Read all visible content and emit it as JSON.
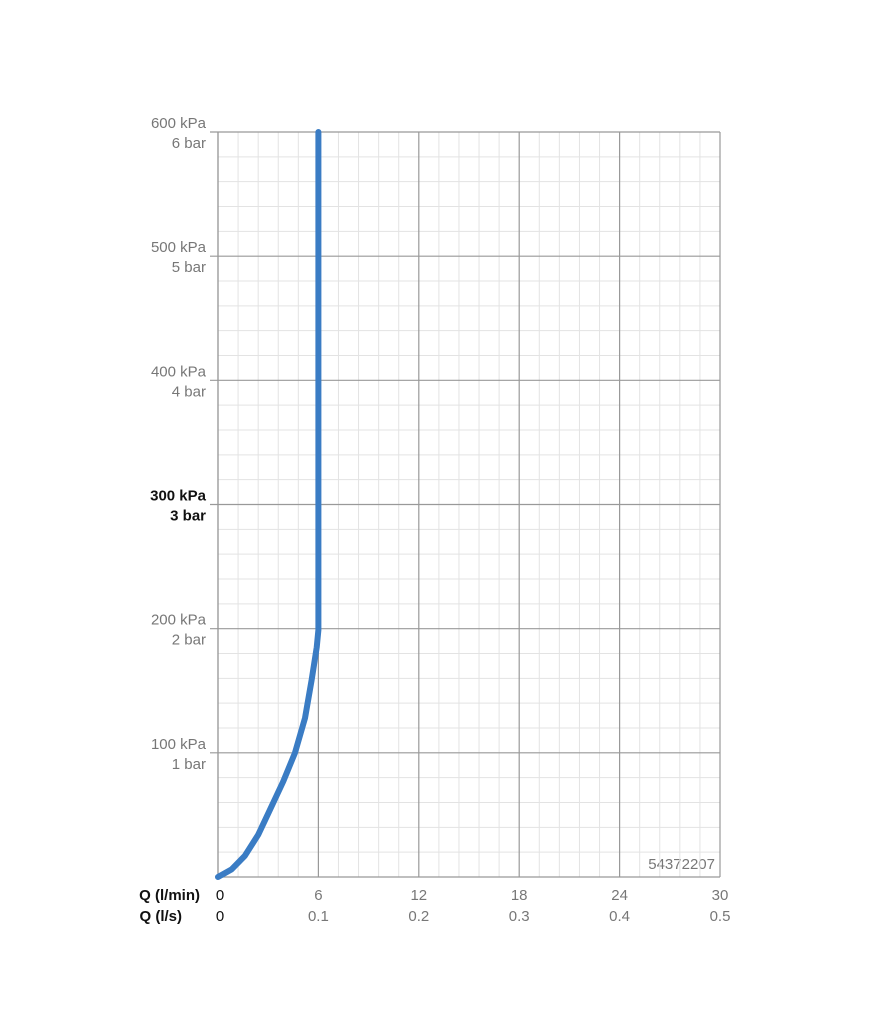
{
  "chart_data": {
    "type": "line",
    "x_label": "Q (l/min)",
    "x2_label": "Q (l/s)",
    "annotation": "54372207",
    "xlim": [
      0,
      30
    ],
    "xticks": [
      0,
      6,
      12,
      18,
      24,
      30
    ],
    "x2lim": [
      0,
      0.5
    ],
    "x2ticks": [
      0,
      0.1,
      0.2,
      0.3,
      0.4,
      0.5
    ],
    "ylim": [
      0,
      600
    ],
    "yticks": [
      {
        "value": 100,
        "label": "100 kPa"
      },
      {
        "value": 200,
        "label": "200 kPa"
      },
      {
        "value": 300,
        "label": "300 kPa",
        "bold": true
      },
      {
        "value": 400,
        "label": "400 kPa"
      },
      {
        "value": 500,
        "label": "500 kPa"
      },
      {
        "value": 600,
        "label": "600 kPa"
      }
    ],
    "y2lim": [
      0,
      6
    ],
    "y2ticks": [
      {
        "value": 1,
        "label": "1 bar"
      },
      {
        "value": 2,
        "label": "2 bar"
      },
      {
        "value": 3,
        "label": "3 bar",
        "bold": true
      },
      {
        "value": 4,
        "label": "4 bar"
      },
      {
        "value": 5,
        "label": "5 bar"
      },
      {
        "value": 6,
        "label": "6 bar"
      }
    ],
    "x_minor_ticks": [
      1.2,
      2.4,
      3.6,
      4.8,
      7.2,
      8.4,
      9.6,
      10.8,
      13.2,
      14.4,
      15.6,
      16.8,
      19.2,
      20.4,
      21.6,
      22.8,
      25.2,
      26.4,
      27.6,
      28.8
    ],
    "y_minor_ticks": [
      20,
      40,
      60,
      80,
      120,
      140,
      160,
      180,
      220,
      240,
      260,
      280,
      320,
      340,
      360,
      380,
      420,
      440,
      460,
      480,
      520,
      540,
      560,
      580
    ],
    "grid": true,
    "series": [
      {
        "color": "#3a7cc4",
        "x": [
          0,
          0.8,
          1.6,
          2.4,
          3.1,
          3.9,
          4.6,
          5.2,
          5.6,
          5.9,
          6,
          6,
          6
        ],
        "values": [
          0,
          6,
          17,
          34,
          54,
          77,
          100,
          128,
          159,
          185,
          199,
          250,
          600
        ]
      }
    ]
  }
}
